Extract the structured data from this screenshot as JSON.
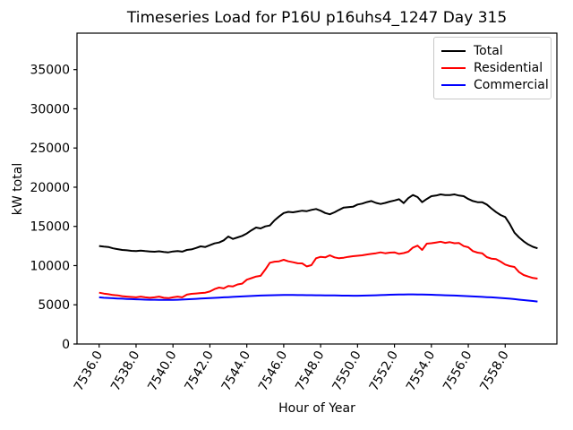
{
  "chart_data": {
    "type": "line",
    "title": "Timeseries Load for P16U p16uhs4_1247  Day 315",
    "xlabel": "Hour of Year",
    "ylabel": "kW total",
    "grid": false,
    "legend_position": "upper right",
    "x_start": 7536.0,
    "x_step": 0.25,
    "xlim": [
      7534.8,
      7560.8
    ],
    "ylim": [
      0,
      39650
    ],
    "xticks": [
      7536,
      7538,
      7540,
      7542,
      7544,
      7546,
      7548,
      7550,
      7552,
      7554,
      7556,
      7558
    ],
    "xtick_labels": [
      "7536.0",
      "7538.0",
      "7540.0",
      "7542.0",
      "7544.0",
      "7546.0",
      "7548.0",
      "7550.0",
      "7552.0",
      "7554.0",
      "7556.0",
      "7558.0"
    ],
    "yticks": [
      0,
      5000,
      10000,
      15000,
      20000,
      25000,
      30000,
      35000
    ],
    "ytick_labels": [
      "0",
      "5000",
      "10000",
      "15000",
      "20000",
      "25000",
      "30000",
      "35000"
    ],
    "series": [
      {
        "name": "Total",
        "color": "#000000",
        "values": [
          12500,
          12420,
          12380,
          12200,
          12100,
          12000,
          11950,
          11880,
          11850,
          11920,
          11850,
          11800,
          11770,
          11830,
          11750,
          11690,
          11800,
          11850,
          11780,
          12000,
          12070,
          12250,
          12450,
          12380,
          12600,
          12830,
          12950,
          13220,
          13710,
          13400,
          13600,
          13790,
          14100,
          14500,
          14850,
          14740,
          15000,
          15120,
          15770,
          16260,
          16700,
          16850,
          16800,
          16900,
          17000,
          16950,
          17100,
          17220,
          17000,
          16700,
          16550,
          16800,
          17100,
          17400,
          17450,
          17500,
          17790,
          17900,
          18100,
          18240,
          18000,
          17860,
          18000,
          18170,
          18300,
          18470,
          17970,
          18600,
          19000,
          18740,
          18090,
          18500,
          18850,
          18930,
          19080,
          19000,
          19000,
          19080,
          18930,
          18850,
          18500,
          18240,
          18090,
          18090,
          17790,
          17300,
          16830,
          16450,
          16190,
          15300,
          14200,
          13600,
          13100,
          12700,
          12400,
          12200
        ]
      },
      {
        "name": "Residential",
        "color": "#ff0000",
        "values": [
          6550,
          6430,
          6350,
          6250,
          6200,
          6100,
          6050,
          6000,
          5950,
          6050,
          5950,
          5900,
          5950,
          6050,
          5900,
          5850,
          5950,
          6050,
          5950,
          6300,
          6400,
          6450,
          6500,
          6550,
          6700,
          7000,
          7200,
          7100,
          7400,
          7350,
          7600,
          7700,
          8200,
          8400,
          8600,
          8700,
          9500,
          10360,
          10500,
          10550,
          10740,
          10550,
          10430,
          10300,
          10280,
          9900,
          10050,
          10930,
          11120,
          11050,
          11310,
          11050,
          10930,
          11000,
          11120,
          11200,
          11250,
          11310,
          11420,
          11500,
          11580,
          11690,
          11580,
          11650,
          11690,
          11500,
          11600,
          11770,
          12300,
          12550,
          12000,
          12800,
          12850,
          12950,
          13050,
          12900,
          12990,
          12850,
          12880,
          12490,
          12340,
          11850,
          11650,
          11580,
          11080,
          10890,
          10820,
          10510,
          10130,
          9940,
          9830,
          9170,
          8800,
          8600,
          8420,
          8340
        ]
      },
      {
        "name": "Commercial",
        "color": "#0000ff",
        "values": [
          5950,
          5900,
          5870,
          5840,
          5800,
          5780,
          5750,
          5720,
          5700,
          5680,
          5660,
          5650,
          5640,
          5630,
          5620,
          5620,
          5630,
          5650,
          5670,
          5700,
          5730,
          5760,
          5800,
          5830,
          5860,
          5890,
          5920,
          5950,
          5980,
          6010,
          6040,
          6070,
          6100,
          6130,
          6160,
          6180,
          6200,
          6220,
          6230,
          6240,
          6250,
          6250,
          6250,
          6240,
          6240,
          6230,
          6230,
          6220,
          6220,
          6210,
          6200,
          6190,
          6180,
          6170,
          6170,
          6160,
          6160,
          6170,
          6180,
          6200,
          6220,
          6240,
          6260,
          6280,
          6300,
          6310,
          6320,
          6330,
          6330,
          6320,
          6310,
          6300,
          6280,
          6260,
          6240,
          6220,
          6200,
          6180,
          6160,
          6130,
          6100,
          6070,
          6040,
          6010,
          5980,
          5950,
          5910,
          5870,
          5830,
          5780,
          5720,
          5660,
          5600,
          5540,
          5480,
          5420
        ]
      }
    ]
  }
}
